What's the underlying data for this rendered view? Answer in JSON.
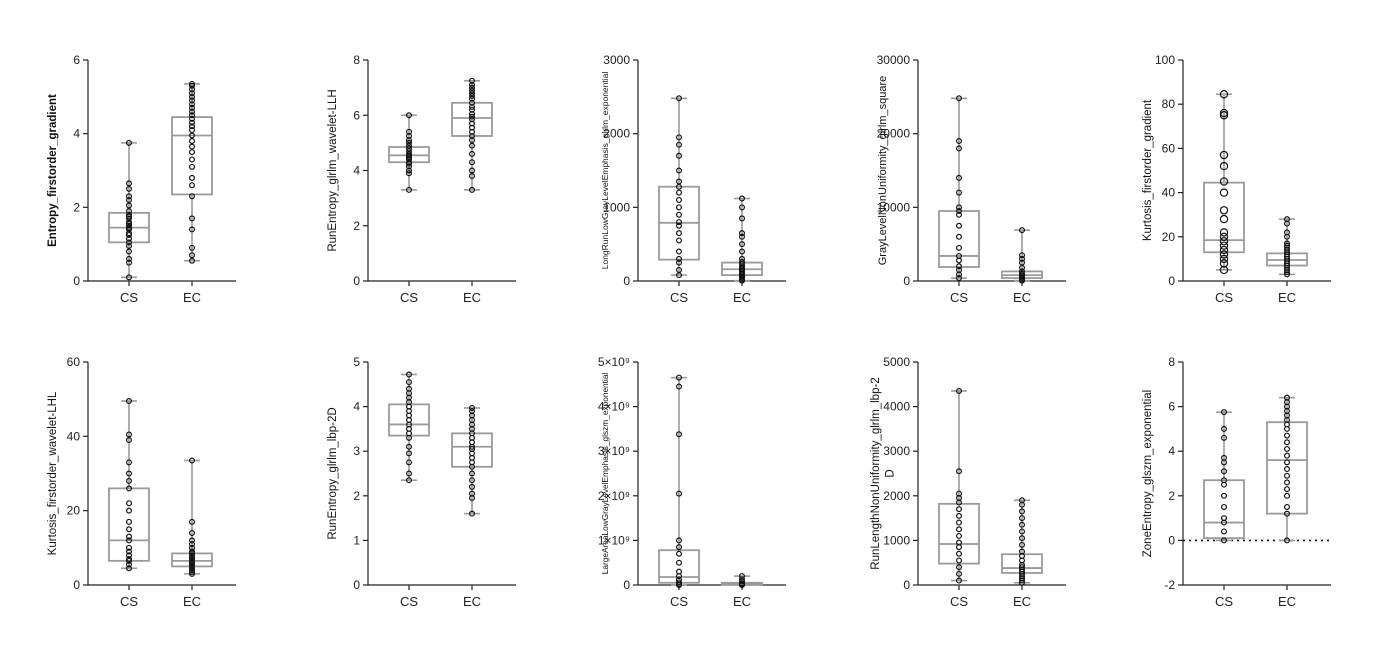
{
  "figure": {
    "colors": {
      "box": "#9a9a9a",
      "axis": "#222222",
      "point": "#111111"
    }
  },
  "chart_data": [
    {
      "type": "box",
      "ylabel": "Entropy_firstorder_gradient",
      "ylabel_bold": true,
      "categories": [
        "CS",
        "EC"
      ],
      "ylim": [
        0,
        6
      ],
      "yticks": [
        0,
        2,
        4,
        6
      ],
      "boxes": [
        {
          "category": "CS",
          "min": 0.1,
          "q1": 1.05,
          "median": 1.45,
          "q3": 1.85,
          "max": 3.75,
          "points": [
            0.1,
            0.5,
            0.6,
            0.8,
            0.95,
            1.05,
            1.15,
            1.25,
            1.3,
            1.4,
            1.45,
            1.5,
            1.55,
            1.6,
            1.7,
            1.75,
            1.8,
            1.9,
            2.05,
            2.2,
            2.3,
            2.5,
            2.65,
            3.75
          ]
        },
        {
          "category": "EC",
          "min": 0.55,
          "q1": 2.35,
          "median": 3.95,
          "q3": 4.45,
          "max": 5.35,
          "points": [
            0.55,
            0.7,
            0.9,
            1.4,
            1.7,
            2.3,
            2.6,
            2.8,
            3.1,
            3.3,
            3.5,
            3.65,
            3.8,
            3.95,
            4.1,
            4.2,
            4.3,
            4.4,
            4.5,
            4.6,
            4.7,
            4.8,
            4.9,
            5.0,
            5.1,
            5.2,
            5.3,
            5.35
          ]
        }
      ]
    },
    {
      "type": "box",
      "ylabel": "RunEntropy_glrlm_wavelet-LLH",
      "ylabel_bold": false,
      "categories": [
        "CS",
        "EC"
      ],
      "ylim": [
        0,
        8
      ],
      "yticks": [
        0,
        2,
        4,
        6,
        8
      ],
      "boxes": [
        {
          "category": "CS",
          "min": 3.3,
          "q1": 4.3,
          "median": 4.55,
          "q3": 4.85,
          "max": 6.0,
          "points": [
            3.3,
            3.9,
            4.0,
            4.15,
            4.25,
            4.3,
            4.4,
            4.45,
            4.5,
            4.55,
            4.6,
            4.7,
            4.8,
            4.9,
            5.0,
            5.1,
            5.25,
            5.4,
            6.0
          ]
        },
        {
          "category": "EC",
          "min": 3.3,
          "q1": 5.25,
          "median": 5.9,
          "q3": 6.45,
          "max": 7.25,
          "points": [
            3.3,
            3.8,
            4.0,
            4.3,
            4.6,
            4.9,
            5.1,
            5.25,
            5.4,
            5.55,
            5.7,
            5.85,
            5.95,
            6.05,
            6.2,
            6.3,
            6.45,
            6.6,
            6.7,
            6.8,
            6.9,
            7.0,
            7.1,
            7.25
          ]
        }
      ]
    },
    {
      "type": "box",
      "ylabel": "LongRunLowGrayLevelEmphasis_glrlm_exponential",
      "ylabel_bold": false,
      "categories": [
        "CS",
        "EC"
      ],
      "ylim": [
        0,
        3000
      ],
      "yticks": [
        0,
        1000,
        2000,
        3000
      ],
      "boxes": [
        {
          "category": "CS",
          "min": 80,
          "q1": 290,
          "median": 790,
          "q3": 1280,
          "max": 2480,
          "points": [
            80,
            150,
            250,
            300,
            400,
            550,
            650,
            750,
            800,
            900,
            1000,
            1100,
            1200,
            1280,
            1350,
            1500,
            1700,
            1850,
            1950,
            2480
          ]
        },
        {
          "category": "EC",
          "min": 5,
          "q1": 80,
          "median": 160,
          "q3": 250,
          "max": 1120,
          "points": [
            5,
            20,
            40,
            60,
            80,
            100,
            120,
            140,
            160,
            180,
            200,
            230,
            260,
            300,
            400,
            500,
            600,
            650,
            850,
            1000,
            1120
          ]
        }
      ]
    },
    {
      "type": "box",
      "ylabel": "GrayLevelNonUniformity_glrlm_square",
      "ylabel_bold": false,
      "categories": [
        "CS",
        "EC"
      ],
      "ylim": [
        0,
        30000
      ],
      "yticks": [
        0,
        10000,
        20000,
        30000
      ],
      "boxes": [
        {
          "category": "CS",
          "min": 400,
          "q1": 1900,
          "median": 3400,
          "q3": 9500,
          "max": 24800,
          "points": [
            400,
            900,
            1500,
            2000,
            2800,
            3400,
            4500,
            6000,
            7500,
            9000,
            9500,
            10000,
            12000,
            14000,
            18000,
            19000,
            24800
          ]
        },
        {
          "category": "EC",
          "min": 50,
          "q1": 400,
          "median": 800,
          "q3": 1300,
          "max": 6900,
          "points": [
            50,
            200,
            400,
            600,
            800,
            1000,
            1300,
            1800,
            2500,
            3000,
            3500,
            6900
          ]
        }
      ]
    },
    {
      "type": "box",
      "ylabel": "Kurtosis_firstorder_gradient",
      "ylabel_bold": false,
      "categories": [
        "CS",
        "EC"
      ],
      "ylim": [
        0,
        100
      ],
      "yticks": [
        0,
        20,
        40,
        60,
        80,
        100
      ],
      "boxes": [
        {
          "category": "CS",
          "min": 5,
          "q1": 13,
          "median": 18.5,
          "q3": 44.5,
          "max": 84.5,
          "points": [
            5,
            8,
            10,
            12,
            14,
            16,
            18,
            20,
            22,
            28,
            32,
            40,
            45,
            52,
            57,
            75,
            76,
            84.5
          ]
        },
        {
          "category": "EC",
          "min": 3,
          "q1": 7,
          "median": 9.5,
          "q3": 12.5,
          "max": 28,
          "points": [
            3,
            4,
            5,
            6,
            7,
            8,
            9,
            10,
            11,
            12,
            13,
            14,
            15,
            16,
            17,
            20,
            22,
            26,
            28
          ]
        }
      ]
    },
    {
      "type": "box",
      "ylabel": "Kurtosis_firstorder_wavelet-LHL",
      "ylabel_bold": false,
      "categories": [
        "CS",
        "EC"
      ],
      "ylim": [
        0,
        60
      ],
      "yticks": [
        0,
        20,
        40,
        60
      ],
      "boxes": [
        {
          "category": "CS",
          "min": 4.5,
          "q1": 6.5,
          "median": 12,
          "q3": 26,
          "max": 49.5,
          "points": [
            4.5,
            5.5,
            6.5,
            7,
            8,
            9,
            10,
            12,
            13,
            15,
            17,
            20,
            22,
            26,
            28,
            30,
            33,
            39,
            40.5,
            49.5
          ]
        },
        {
          "category": "EC",
          "min": 3,
          "q1": 5,
          "median": 6.5,
          "q3": 8.5,
          "max": 33.5,
          "points": [
            3,
            3.5,
            4,
            4.5,
            5,
            5.5,
            6,
            6.5,
            7,
            7.5,
            8,
            8.5,
            9,
            10,
            11,
            12,
            14,
            17,
            33.5
          ]
        }
      ]
    },
    {
      "type": "box",
      "ylabel": "RunEntropy_glrlm_lbp-2D",
      "ylabel_bold": false,
      "categories": [
        "CS",
        "EC"
      ],
      "ylim": [
        0,
        5
      ],
      "yticks": [
        0,
        1,
        2,
        3,
        4,
        5
      ],
      "boxes": [
        {
          "category": "CS",
          "min": 2.35,
          "q1": 3.35,
          "median": 3.6,
          "q3": 4.05,
          "max": 4.72,
          "points": [
            2.35,
            2.5,
            2.75,
            2.95,
            3.1,
            3.3,
            3.4,
            3.5,
            3.6,
            3.7,
            3.8,
            3.9,
            4.0,
            4.1,
            4.2,
            4.3,
            4.4,
            4.55,
            4.72
          ]
        },
        {
          "category": "EC",
          "min": 1.6,
          "q1": 2.65,
          "median": 3.1,
          "q3": 3.4,
          "max": 3.97,
          "points": [
            1.6,
            1.95,
            2.05,
            2.2,
            2.35,
            2.5,
            2.65,
            2.75,
            2.85,
            2.95,
            3.05,
            3.1,
            3.2,
            3.3,
            3.4,
            3.5,
            3.6,
            3.7,
            3.8,
            3.9,
            3.97
          ]
        }
      ]
    },
    {
      "type": "box",
      "ylabel": "LargeAreaLowGrayLevelEmphasis_glszm_exponential",
      "ylabel_bold": false,
      "categories": [
        "CS",
        "EC"
      ],
      "ylim": [
        0,
        5000000000.0
      ],
      "yticks": [
        0,
        1000000000.0,
        2000000000.0,
        3000000000.0,
        4000000000.0,
        5000000000.0
      ],
      "ytick_labels": [
        "0",
        "1×10⁹",
        "2×10⁹",
        "3×10⁹",
        "4×10⁹",
        "5×10⁹"
      ],
      "boxes": [
        {
          "category": "CS",
          "min": 0,
          "q1": 50000000.0,
          "median": 180000000.0,
          "q3": 780000000.0,
          "max": 4650000000.0,
          "points": [
            0,
            20000000.0,
            60000000.0,
            120000000.0,
            200000000.0,
            300000000.0,
            500000000.0,
            700000000.0,
            850000000.0,
            1000000000.0,
            2050000000.0,
            3380000000.0,
            4450000000.0,
            4650000000.0
          ]
        },
        {
          "category": "EC",
          "min": 0,
          "q1": 5000000.0,
          "median": 20000000.0,
          "q3": 50000000.0,
          "max": 200000000.0,
          "points": [
            0,
            10000000.0,
            20000000.0,
            40000000.0,
            80000000.0,
            130000000.0,
            200000000.0
          ]
        }
      ]
    },
    {
      "type": "box",
      "ylabel": "RunLengthNonUniformity_glrlm_lbp-2D",
      "ylabel_lines": [
        "RunLengthNonUniformity_glrlm_lbp-2",
        "D"
      ],
      "ylabel_bold": false,
      "categories": [
        "CS",
        "EC"
      ],
      "ylim": [
        0,
        5000
      ],
      "yticks": [
        0,
        1000,
        2000,
        3000,
        4000,
        5000
      ],
      "boxes": [
        {
          "category": "CS",
          "min": 100,
          "q1": 480,
          "median": 920,
          "q3": 1820,
          "max": 4350,
          "points": [
            100,
            250,
            400,
            550,
            700,
            850,
            950,
            1100,
            1250,
            1400,
            1550,
            1700,
            1850,
            1950,
            2050,
            2550,
            4350
          ]
        },
        {
          "category": "EC",
          "min": 50,
          "q1": 270,
          "median": 380,
          "q3": 690,
          "max": 1900,
          "points": [
            50,
            100,
            150,
            200,
            250,
            300,
            350,
            400,
            450,
            550,
            650,
            750,
            900,
            1050,
            1200,
            1350,
            1500,
            1650,
            1800,
            1900
          ]
        }
      ]
    },
    {
      "type": "box",
      "ylabel": "ZoneEntropy_glszm_exponential",
      "ylabel_bold": false,
      "categories": [
        "CS",
        "EC"
      ],
      "ylim": [
        -2,
        8
      ],
      "yticks": [
        -2,
        0,
        2,
        4,
        6,
        8
      ],
      "reference_line": 0,
      "boxes": [
        {
          "category": "CS",
          "min": 0,
          "q1": 0.1,
          "median": 0.8,
          "q3": 2.7,
          "max": 5.75,
          "points": [
            0,
            0.4,
            0.8,
            1.0,
            1.5,
            2.0,
            2.5,
            2.7,
            3.1,
            3.5,
            3.7,
            4.6,
            5.0,
            5.75
          ]
        },
        {
          "category": "EC",
          "min": 0,
          "q1": 1.2,
          "median": 3.6,
          "q3": 5.3,
          "max": 6.4,
          "points": [
            0,
            1.2,
            1.5,
            2.0,
            2.3,
            2.6,
            2.9,
            3.2,
            3.5,
            3.8,
            4.1,
            4.4,
            4.7,
            5.0,
            5.2,
            5.4,
            5.6,
            5.8,
            6.0,
            6.2,
            6.4
          ]
        }
      ]
    }
  ]
}
